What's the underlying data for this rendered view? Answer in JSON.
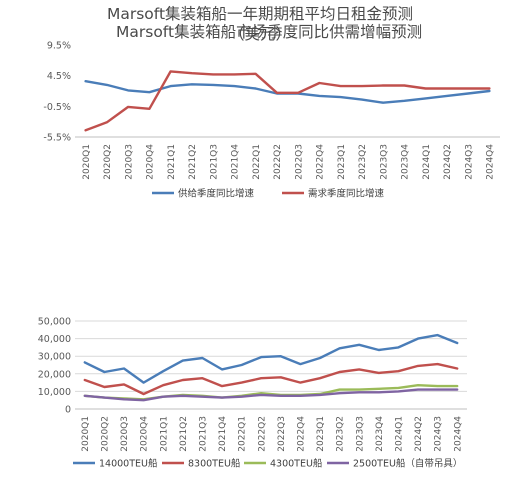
{
  "chart_data": [
    {
      "type": "line",
      "title": "Marsoft集装箱船市场季度同比供需增幅预测",
      "categories": [
        "2020Q1",
        "2020Q2",
        "2020Q3",
        "2020Q4",
        "2021Q1",
        "2021Q2",
        "2021Q3",
        "2021Q4",
        "2022Q1",
        "2022Q2",
        "2022Q3",
        "2022Q4",
        "2023Q1",
        "2023Q2",
        "2023Q3",
        "2023Q4",
        "2024Q1",
        "2024Q2",
        "2024Q3",
        "2024Q4"
      ],
      "y_ticks": [
        "9.5%",
        "4.5%",
        "-0.5%",
        "-5.5%"
      ],
      "ylim": [
        -5.5,
        9.5
      ],
      "legend_position": "bottom",
      "series": [
        {
          "name": "供给季度同比增速",
          "color": "#4a7db8",
          "values": [
            3.6,
            3.0,
            2.1,
            1.8,
            2.8,
            3.1,
            3.0,
            2.8,
            2.4,
            1.6,
            1.6,
            1.2,
            1.0,
            0.6,
            0.1,
            0.4,
            0.8,
            1.2,
            1.6,
            2.0
          ]
        },
        {
          "name": "需求季度同比增速",
          "color": "#c0504d",
          "values": [
            -4.4,
            -3.1,
            -0.6,
            -0.9,
            5.2,
            4.9,
            4.7,
            4.7,
            4.8,
            1.7,
            1.7,
            3.3,
            2.8,
            2.8,
            2.9,
            2.9,
            2.4,
            2.4,
            2.4,
            2.4
          ]
        }
      ]
    },
    {
      "type": "line",
      "title": "Marsoft集装箱船一年期期租平均日租金预测（美元）",
      "categories": [
        "2020Q1",
        "2020Q2",
        "2020Q3",
        "2020Q4",
        "2021Q1",
        "2021Q2",
        "2021Q3",
        "2021Q4",
        "2022Q1",
        "2022Q2",
        "2022Q3",
        "2022Q4",
        "2023Q1",
        "2023Q2",
        "2023Q3",
        "2023Q4",
        "2024Q1",
        "2024Q2",
        "2024Q3",
        "2024Q4"
      ],
      "y_ticks": [
        "50,000",
        "40,000",
        "30,000",
        "20,000",
        "10,000",
        "0"
      ],
      "ylim": [
        0,
        50000
      ],
      "legend_position": "bottom",
      "series": [
        {
          "name": "14000TEU船",
          "color": "#4a7db8",
          "values": [
            26500,
            21000,
            23000,
            15000,
            21500,
            27500,
            29000,
            22500,
            25000,
            29500,
            30000,
            25500,
            29000,
            34500,
            36500,
            33500,
            35000,
            40000,
            42000,
            37500
          ]
        },
        {
          "name": "8300TEU船",
          "color": "#c0504d",
          "values": [
            16500,
            12500,
            14000,
            8500,
            13500,
            16500,
            17500,
            13000,
            15000,
            17500,
            18000,
            15000,
            17500,
            21000,
            22500,
            20500,
            21500,
            24500,
            25500,
            23000
          ]
        },
        {
          "name": "4300TEU船",
          "color": "#9bbb59",
          "values": [
            7500,
            6500,
            6000,
            5500,
            7000,
            8000,
            7500,
            6500,
            7500,
            9000,
            8000,
            8000,
            8500,
            11000,
            11000,
            11500,
            12000,
            13500,
            13000,
            13000
          ]
        },
        {
          "name": "2500TEU船（自带吊具）",
          "color": "#7f64a2",
          "values": [
            7500,
            6500,
            5500,
            5000,
            7000,
            7500,
            7000,
            6500,
            7000,
            8000,
            7500,
            7500,
            8000,
            9000,
            9500,
            9500,
            10000,
            11000,
            11000,
            11000
          ]
        }
      ]
    }
  ]
}
